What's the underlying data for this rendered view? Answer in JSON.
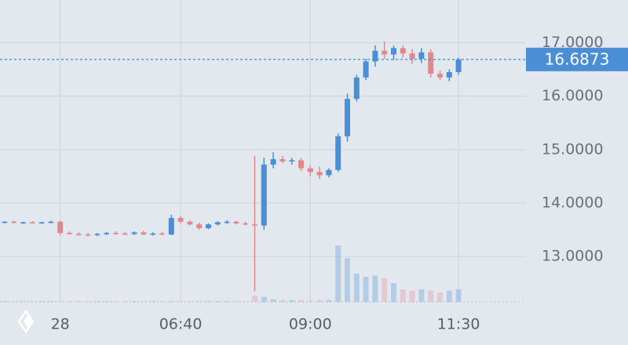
{
  "chart_data": {
    "type": "candlestick",
    "categories": [
      null,
      null,
      null,
      null,
      null,
      null,
      "28",
      null,
      null,
      null,
      null,
      null,
      null,
      null,
      null,
      null,
      null,
      null,
      null,
      "06:40",
      null,
      null,
      null,
      null,
      null,
      null,
      null,
      null,
      null,
      null,
      null,
      null,
      null,
      "09:00",
      null,
      null,
      null,
      null,
      null,
      null,
      null,
      null,
      null,
      null,
      null,
      null,
      null,
      null,
      null,
      "11:30"
    ],
    "open": [
      13.64,
      13.65,
      13.63,
      13.64,
      13.63,
      13.64,
      13.65,
      13.44,
      13.42,
      13.41,
      13.4,
      13.42,
      13.44,
      13.43,
      13.42,
      13.45,
      13.41,
      13.43,
      13.41,
      13.72,
      13.65,
      13.6,
      13.53,
      13.6,
      13.64,
      13.65,
      13.62,
      13.6,
      13.58,
      14.72,
      14.82,
      14.78,
      14.8,
      14.65,
      14.58,
      14.52,
      14.62,
      15.25,
      15.95,
      16.35,
      16.65,
      16.85,
      16.78,
      16.9,
      16.8,
      16.7,
      16.82,
      16.42,
      16.35,
      16.45
    ],
    "high": [
      13.66,
      13.67,
      13.65,
      13.66,
      13.65,
      13.67,
      13.67,
      13.47,
      13.45,
      13.44,
      13.44,
      13.46,
      13.47,
      13.46,
      13.47,
      13.48,
      13.45,
      13.46,
      13.78,
      13.76,
      13.68,
      13.63,
      13.62,
      13.66,
      13.68,
      13.67,
      13.65,
      14.88,
      14.85,
      14.95,
      14.88,
      14.85,
      14.84,
      14.7,
      14.68,
      14.65,
      15.3,
      16.05,
      16.4,
      16.7,
      16.95,
      17.02,
      16.95,
      16.95,
      16.88,
      16.9,
      16.88,
      16.48,
      16.5,
      16.72
    ],
    "low": [
      13.62,
      13.62,
      13.61,
      13.62,
      13.61,
      13.62,
      13.4,
      13.41,
      13.39,
      13.38,
      13.38,
      13.4,
      13.41,
      13.4,
      13.4,
      13.4,
      13.39,
      13.4,
      13.4,
      13.62,
      13.58,
      13.5,
      13.51,
      13.58,
      13.61,
      13.6,
      13.58,
      12.35,
      13.5,
      14.65,
      14.75,
      14.72,
      14.6,
      14.5,
      14.45,
      14.48,
      14.58,
      15.15,
      15.9,
      16.3,
      16.55,
      16.7,
      16.68,
      16.72,
      16.6,
      16.62,
      16.35,
      16.3,
      16.28,
      16.4
    ],
    "close": [
      13.65,
      13.63,
      13.64,
      13.63,
      13.64,
      13.65,
      13.44,
      13.42,
      13.41,
      13.4,
      13.42,
      13.44,
      13.43,
      13.42,
      13.45,
      13.41,
      13.43,
      13.41,
      13.72,
      13.65,
      13.6,
      13.53,
      13.6,
      13.64,
      13.65,
      13.62,
      13.6,
      13.58,
      14.72,
      14.82,
      14.78,
      14.8,
      14.65,
      14.58,
      14.52,
      14.62,
      15.25,
      15.95,
      16.35,
      16.65,
      16.85,
      16.78,
      16.9,
      16.8,
      16.7,
      16.82,
      16.42,
      16.35,
      16.45,
      16.6873
    ],
    "volume": [
      1,
      1,
      1,
      1,
      1,
      1,
      1,
      1,
      1,
      1,
      1,
      1,
      1,
      1,
      1,
      1,
      1,
      1,
      1,
      1,
      1,
      1,
      1,
      1,
      1,
      1,
      1,
      10,
      8,
      4,
      3,
      3,
      3,
      2,
      3,
      3,
      90,
      70,
      45,
      40,
      42,
      38,
      30,
      20,
      18,
      20,
      18,
      15,
      18,
      20
    ],
    "volume_lim": [
      0,
      100
    ],
    "ylim": [
      12.15,
      17.8
    ],
    "yticks": [
      {
        "value": 13,
        "label": "13.0000"
      },
      {
        "value": 14,
        "label": "14.0000"
      },
      {
        "value": 15,
        "label": "15.0000"
      },
      {
        "value": 16,
        "label": "16.0000"
      },
      {
        "value": 17,
        "label": "17.0000"
      }
    ],
    "last_price": {
      "value": 16.6873,
      "label": "16.6873"
    },
    "up_color": "#4a8fd6",
    "down_color": "#e0888a",
    "grid": true
  }
}
